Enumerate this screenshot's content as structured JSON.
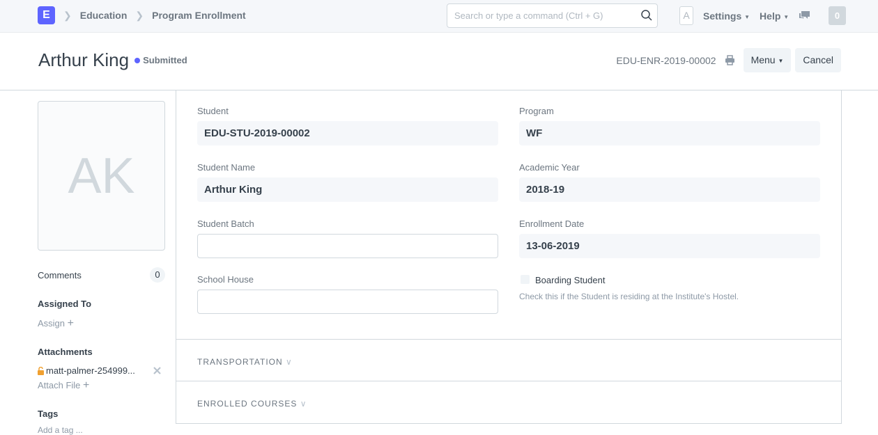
{
  "navbar": {
    "logo": "E",
    "breadcrumbs": [
      "Education",
      "Program Enrollment"
    ],
    "search_placeholder": "Search or type a command (Ctrl + G)",
    "avatar": "A",
    "settings": "Settings",
    "help": "Help",
    "notifications": "0"
  },
  "header": {
    "title": "Arthur King",
    "status": "Submitted",
    "status_color": "#5e64ff",
    "doc_name": "EDU-ENR-2019-00002",
    "menu": "Menu",
    "cancel": "Cancel"
  },
  "sidebar": {
    "avatar_initials": "AK",
    "comments_label": "Comments",
    "comments_count": "0",
    "assigned_to": "Assigned To",
    "assign": "Assign",
    "attachments": "Attachments",
    "attachment_file": "matt-palmer-254999...",
    "attach_file": "Attach File",
    "tags": "Tags",
    "add_tag": "Add a tag ..."
  },
  "form": {
    "student": {
      "label": "Student",
      "value": "EDU-STU-2019-00002"
    },
    "program": {
      "label": "Program",
      "value": "WF"
    },
    "student_name": {
      "label": "Student Name",
      "value": "Arthur King"
    },
    "academic_year": {
      "label": "Academic Year",
      "value": "2018-19"
    },
    "student_batch": {
      "label": "Student Batch",
      "value": ""
    },
    "enrollment_date": {
      "label": "Enrollment Date",
      "value": "13-06-2019"
    },
    "school_house": {
      "label": "School House",
      "value": ""
    },
    "boarding": {
      "label": "Boarding Student",
      "checked": false,
      "help": "Check this if the Student is residing at the Institute's Hostel."
    },
    "sections": [
      "TRANSPORTATION",
      "ENROLLED COURSES"
    ]
  }
}
